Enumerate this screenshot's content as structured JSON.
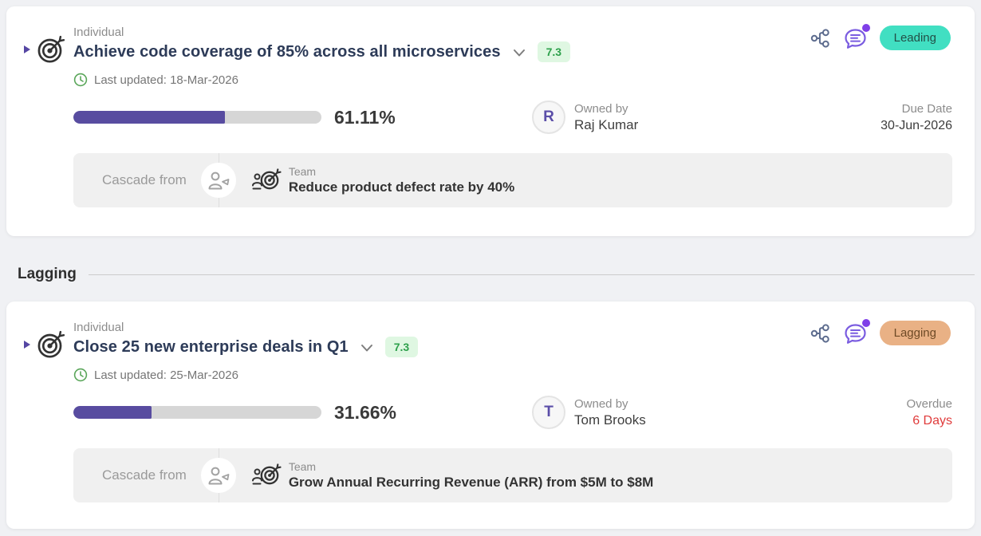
{
  "section": {
    "label": "Lagging"
  },
  "cards": [
    {
      "type_label": "Individual",
      "title": "Achieve code coverage of 85% across all microservices",
      "score": "7.3",
      "status": {
        "label": "Leading",
        "bg": "#41dfc2",
        "fg": "#234f47"
      },
      "last_updated": "Last updated: 18-Mar-2026",
      "progress": {
        "percent": 61.11,
        "label": "61.11%"
      },
      "owner": {
        "initial": "R",
        "caption": "Owned by",
        "name": "Raj Kumar"
      },
      "deadline": {
        "caption": "Due Date",
        "value": "30-Jun-2026",
        "color": "#3d3d3d"
      },
      "cascade": {
        "label": "Cascade from",
        "type": "Team",
        "goal": "Reduce product defect rate by 40%"
      }
    },
    {
      "type_label": "Individual",
      "title": "Close 25 new enterprise deals in Q1",
      "score": "7.3",
      "status": {
        "label": "Lagging",
        "bg": "#e9b185",
        "fg": "#6e4a26"
      },
      "last_updated": "Last updated: 25-Mar-2026",
      "progress": {
        "percent": 31.66,
        "label": "31.66%"
      },
      "owner": {
        "initial": "T",
        "caption": "Owned by",
        "name": "Tom Brooks"
      },
      "deadline": {
        "caption": "Overdue",
        "value": "6 Days",
        "color": "#e03b3b"
      },
      "cascade": {
        "label": "Cascade from",
        "type": "Team",
        "goal": "Grow Annual Recurring Revenue (ARR) from $5M to $8M"
      }
    }
  ]
}
